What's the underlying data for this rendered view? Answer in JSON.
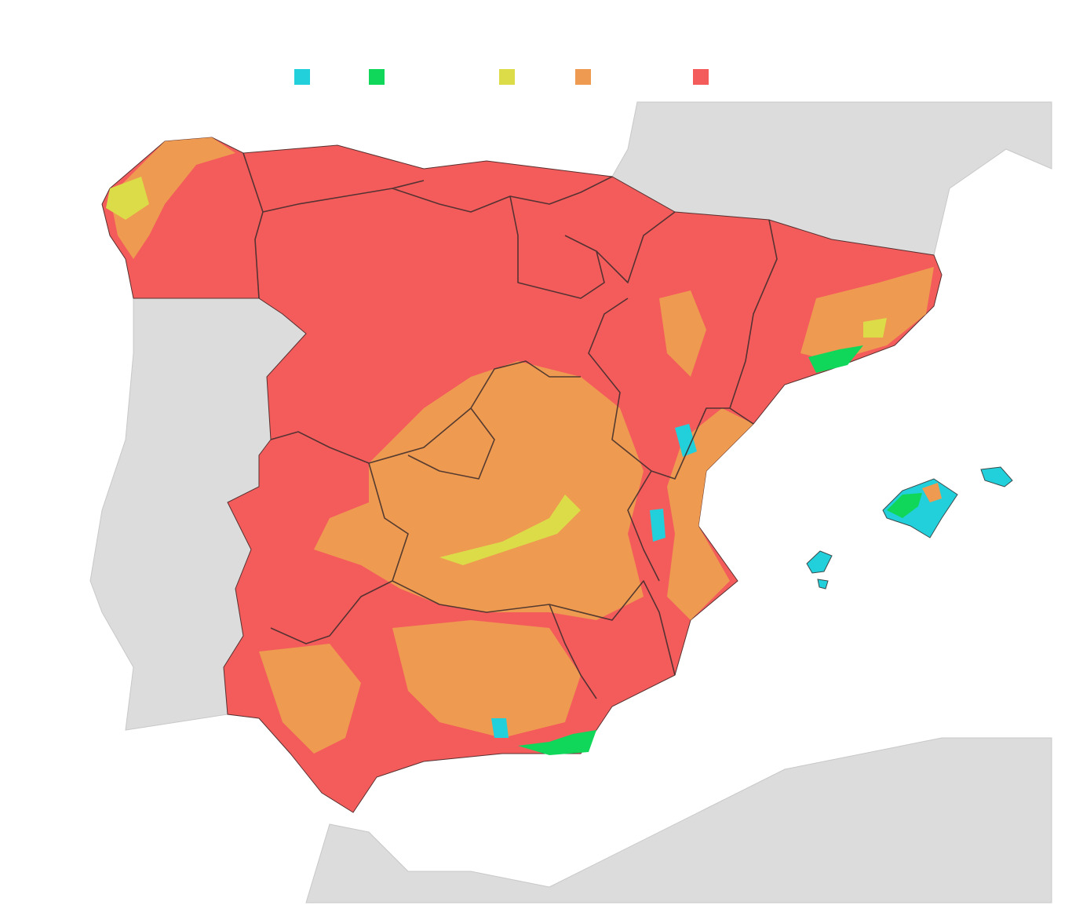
{
  "legend": {
    "colors": [
      "#22d0dc",
      "#10d65a",
      "#dcdc48",
      "#ee9a50",
      "#f45c5c"
    ]
  }
}
